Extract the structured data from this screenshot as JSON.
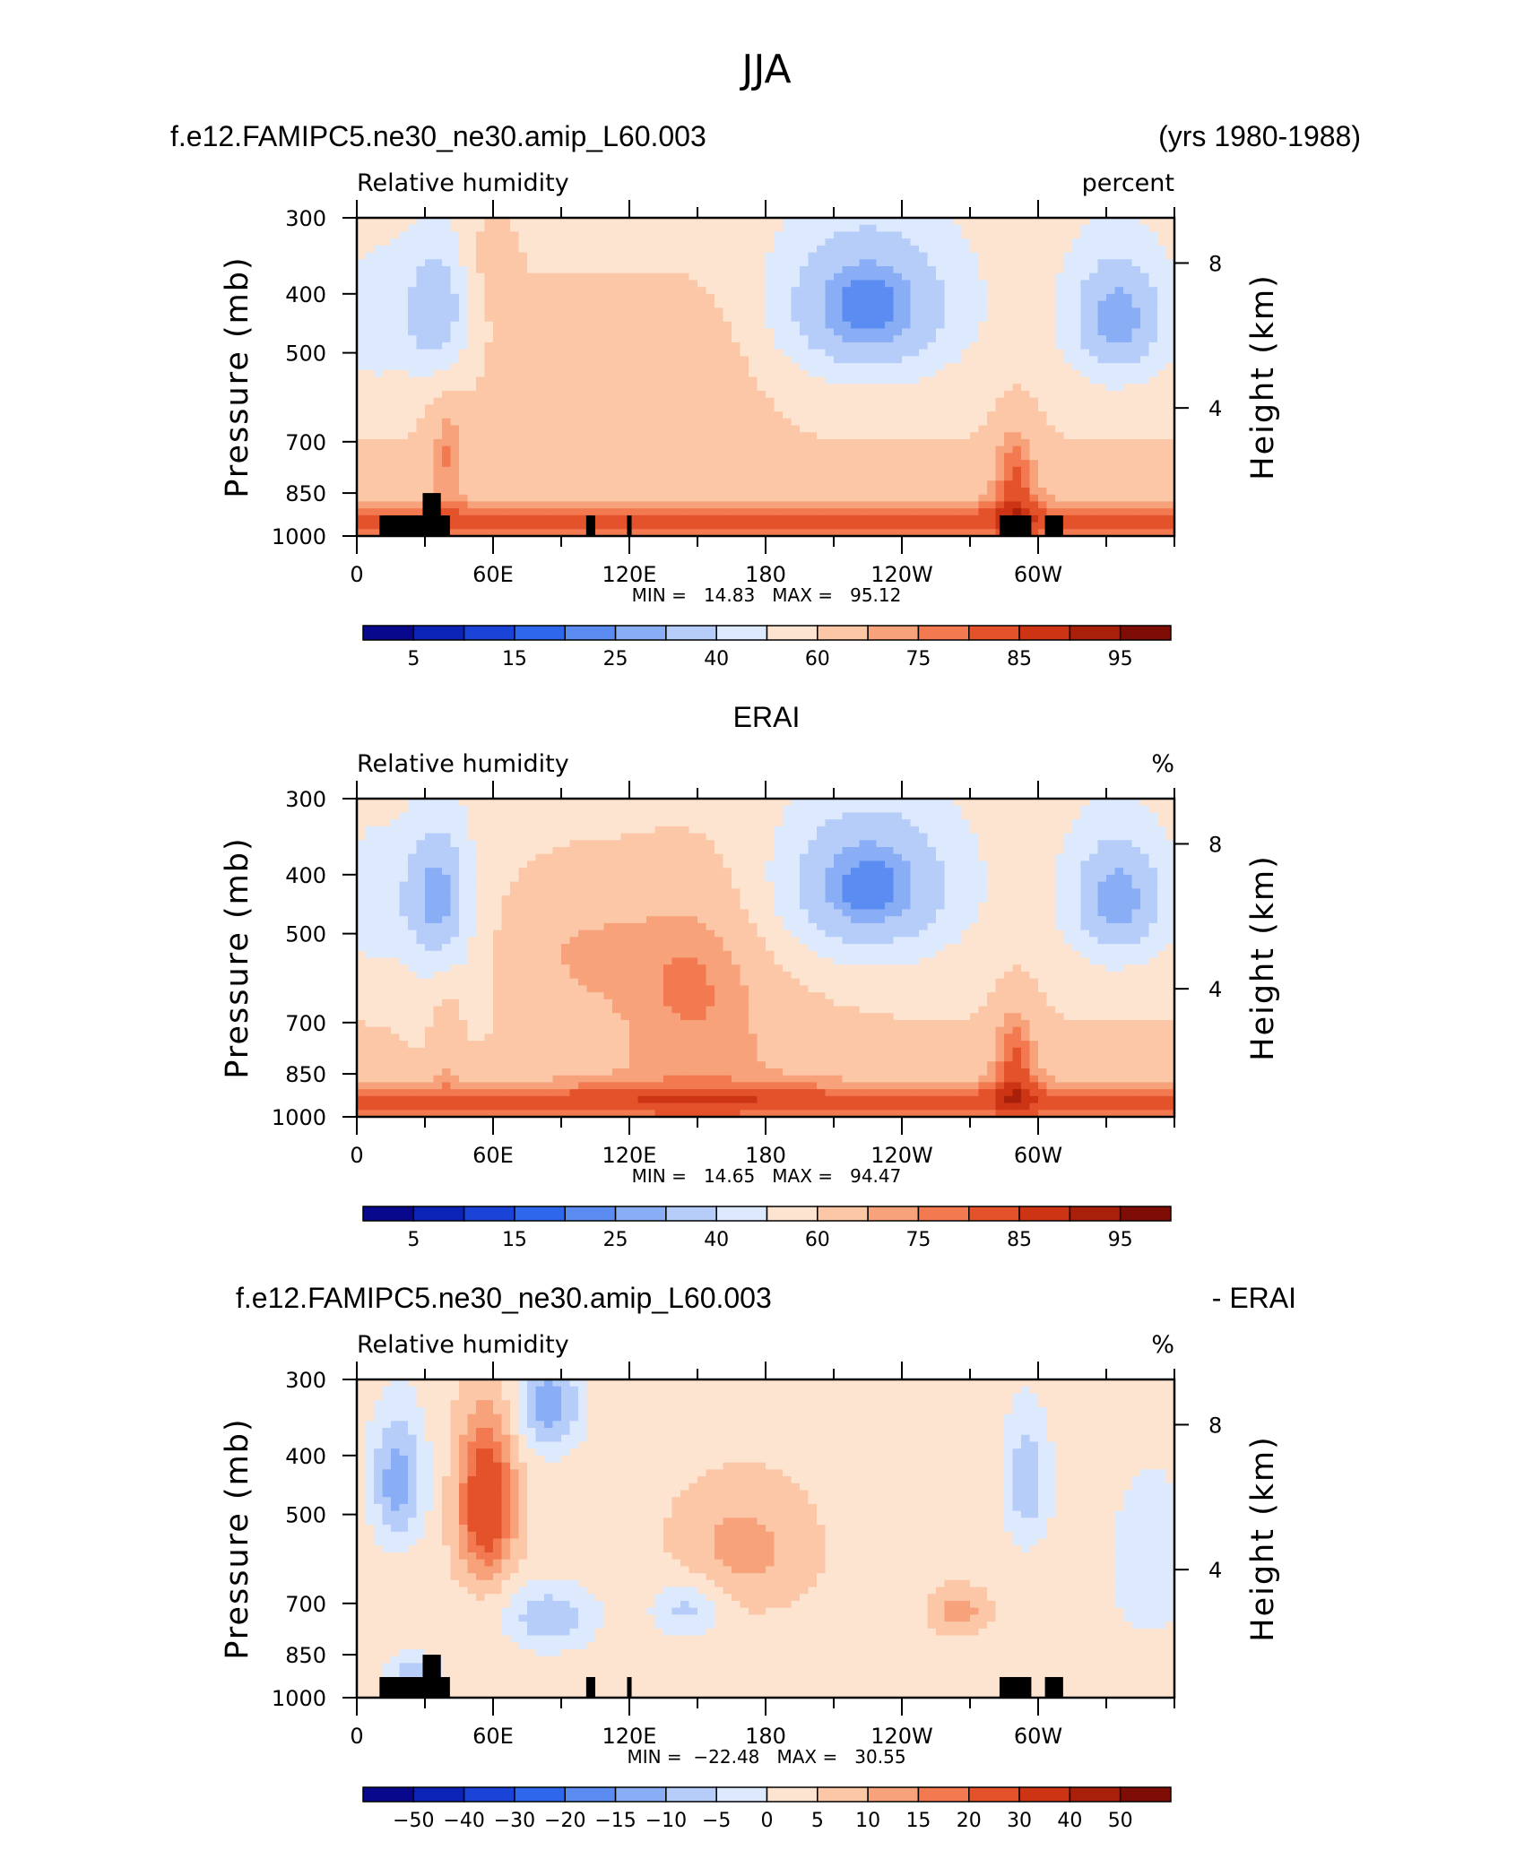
{
  "figure": {
    "title": "JJA"
  },
  "colors": {
    "rh_levels": [
      "#08088c",
      "#0c23b8",
      "#1a44d8",
      "#2e66ec",
      "#5b8cf2",
      "#8aaef6",
      "#b6cdf9",
      "#dde9fc",
      "#fde4d0",
      "#fbc7a7",
      "#f7a27a",
      "#f27950",
      "#e4522c",
      "#cc3414",
      "#a81f0a",
      "#7d0d05"
    ],
    "diff_levels": [
      "#08088c",
      "#0c23b8",
      "#1a44d8",
      "#2e66ec",
      "#5b8cf2",
      "#8aaef6",
      "#b6cdf9",
      "#dde9fc",
      "#fde4d0",
      "#fbc7a7",
      "#f7a27a",
      "#f27950",
      "#e4522c",
      "#cc3414",
      "#a81f0a",
      "#7d0d05"
    ],
    "terrain": "#000000"
  },
  "chart_data": [
    {
      "type": "heatmap",
      "id": "model",
      "title_left": "f.e12.FAMIPC5.ne30_ne30.amip_L60.003",
      "title_right": "(yrs 1980-1988)",
      "title_center": "",
      "variable": "Relative humidity",
      "units": "percent",
      "ylabel": "Pressure (mb)",
      "ylabel_right": "Height (km)",
      "x_ticks": [
        "0",
        "60E",
        "120E",
        "180",
        "120W",
        "60W"
      ],
      "y_ticks": [
        "300",
        "400",
        "500",
        "700",
        "850",
        "1000"
      ],
      "y_right_ticks": [
        "8",
        "4"
      ],
      "ylim": [
        1000,
        300
      ],
      "xlim": [
        0,
        360
      ],
      "stats": "MIN =   14.83   MAX =   95.12",
      "min": 14.83,
      "max": 95.12,
      "colorbar_labels": [
        "5",
        "15",
        "25",
        "40",
        "60",
        "75",
        "85",
        "95"
      ],
      "colorbar_levels": [
        5,
        10,
        15,
        20,
        25,
        30,
        40,
        50,
        60,
        70,
        75,
        80,
        85,
        90,
        95
      ]
    },
    {
      "type": "heatmap",
      "id": "erai",
      "title_left": "",
      "title_right": "",
      "title_center": "ERAI",
      "variable": "Relative humidity",
      "units": "%",
      "ylabel": "Pressure (mb)",
      "ylabel_right": "Height (km)",
      "x_ticks": [
        "0",
        "60E",
        "120E",
        "180",
        "120W",
        "60W"
      ],
      "y_ticks": [
        "300",
        "400",
        "500",
        "700",
        "850",
        "1000"
      ],
      "y_right_ticks": [
        "8",
        "4"
      ],
      "ylim": [
        1000,
        300
      ],
      "xlim": [
        0,
        360
      ],
      "stats": "MIN =   14.65   MAX =   94.47",
      "min": 14.65,
      "max": 94.47,
      "colorbar_labels": [
        "5",
        "15",
        "25",
        "40",
        "60",
        "75",
        "85",
        "95"
      ],
      "colorbar_levels": [
        5,
        10,
        15,
        20,
        25,
        30,
        40,
        50,
        60,
        70,
        75,
        80,
        85,
        90,
        95
      ]
    },
    {
      "type": "heatmap",
      "id": "diff",
      "title_left": "f.e12.FAMIPC5.ne30_ne30.amip_L60.003",
      "title_right": "- ERAI",
      "title_center": "",
      "variable": "Relative humidity",
      "units": "%",
      "ylabel": "Pressure (mb)",
      "ylabel_right": "Height (km)",
      "x_ticks": [
        "0",
        "60E",
        "120E",
        "180",
        "120W",
        "60W"
      ],
      "y_ticks": [
        "300",
        "400",
        "500",
        "700",
        "850",
        "1000"
      ],
      "y_right_ticks": [
        "8",
        "4"
      ],
      "ylim": [
        1000,
        300
      ],
      "xlim": [
        0,
        360
      ],
      "stats": "MIN =  −22.48   MAX =   30.55",
      "min": -22.48,
      "max": 30.55,
      "colorbar_labels": [
        "−50",
        "−40",
        "−30",
        "−20",
        "−15",
        "−10",
        "−5",
        "0",
        "5",
        "10",
        "15",
        "20",
        "30",
        "40",
        "50"
      ],
      "colorbar_levels": [
        -50,
        -40,
        -30,
        -20,
        -15,
        -10,
        -5,
        0,
        5,
        10,
        15,
        20,
        30,
        40,
        50
      ]
    }
  ]
}
